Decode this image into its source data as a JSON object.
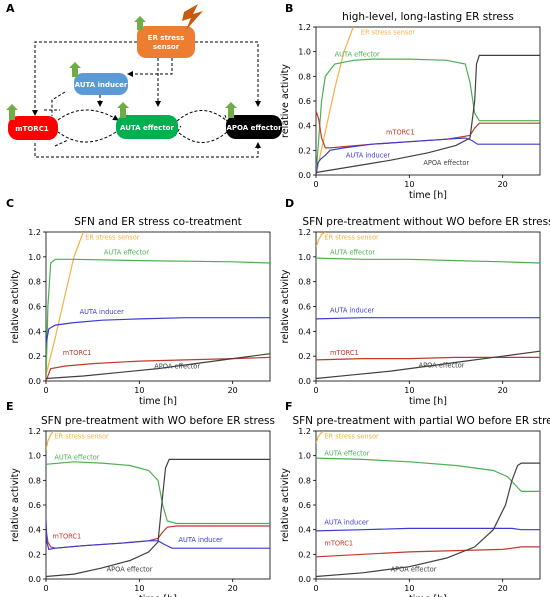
{
  "figure": {
    "panel_letters": [
      "A",
      "B",
      "C",
      "D",
      "E",
      "F"
    ]
  },
  "diagram": {
    "nodes": {
      "er_sensor": "ER stress sensor",
      "auta_inducer": "AUTA inducer",
      "mtorc1": "mTORC1",
      "auta_effector": "AUTA effector",
      "apoa_effector": "APOA effector"
    },
    "colors": {
      "er_sensor": "#ed7d31",
      "auta_inducer": "#5b9bd5",
      "mtorc1": "#ff0000",
      "auta_effector": "#00b050",
      "apoa_effector": "#000000",
      "arrow_up": "#70ad47",
      "lightning": "#c55a11"
    }
  },
  "colors": {
    "er_stress_sensor": "#f5b041",
    "auta_effector": "#4caf50",
    "mtorc1": "#c0392b",
    "auta_inducer": "#3c3cd0",
    "apoa_effector": "#404040"
  },
  "chart_data": [
    {
      "id": "B",
      "type": "line",
      "title": "high-level, long-lasting ER stress",
      "xlabel": "time [h]",
      "ylabel": "relative activity",
      "xlim": [
        0,
        24
      ],
      "ylim": [
        0,
        1.2
      ],
      "xticks": [
        "0",
        "10",
        "20"
      ],
      "yticks": [
        "0.0",
        "0.2",
        "0.4",
        "0.6",
        "0.8",
        "1.0",
        "1.2"
      ],
      "grid": false,
      "annotations": [
        "ER stress sensor",
        "AUTA effector",
        "mTORC1",
        "AUTA inducer",
        "APOA effector"
      ],
      "series": [
        {
          "name": "ER stress sensor",
          "x": [
            0,
            1,
            2,
            3,
            4
          ],
          "y": [
            0.0,
            0.35,
            0.7,
            1.0,
            1.2
          ]
        },
        {
          "name": "AUTA effector",
          "x": [
            0,
            0.3,
            0.6,
            1,
            2,
            4,
            6,
            10,
            14,
            16,
            16.5,
            17,
            17.5,
            20,
            24
          ],
          "y": [
            0.0,
            0.3,
            0.6,
            0.8,
            0.9,
            0.93,
            0.94,
            0.94,
            0.93,
            0.9,
            0.75,
            0.5,
            0.44,
            0.44,
            0.44
          ]
        },
        {
          "name": "mTORC1",
          "x": [
            0,
            0.3,
            0.6,
            1,
            1.5,
            3,
            6,
            10,
            14,
            16.5,
            17,
            17.5,
            20,
            24
          ],
          "y": [
            0.52,
            0.45,
            0.3,
            0.22,
            0.22,
            0.23,
            0.25,
            0.27,
            0.29,
            0.32,
            0.38,
            0.42,
            0.42,
            0.42
          ]
        },
        {
          "name": "AUTA inducer",
          "x": [
            0,
            0.2,
            0.5,
            1,
            1.5,
            3,
            6,
            10,
            14,
            16,
            16.7,
            17.3,
            20,
            24
          ],
          "y": [
            0.0,
            0.1,
            0.13,
            0.16,
            0.2,
            0.22,
            0.25,
            0.27,
            0.29,
            0.3,
            0.28,
            0.25,
            0.25,
            0.25
          ]
        },
        {
          "name": "APOA effector",
          "x": [
            0,
            4,
            8,
            12,
            15,
            16.5,
            17,
            17.2,
            17.5,
            20,
            24
          ],
          "y": [
            0.02,
            0.07,
            0.12,
            0.18,
            0.24,
            0.3,
            0.6,
            0.9,
            0.97,
            0.97,
            0.97
          ]
        }
      ]
    },
    {
      "id": "C",
      "type": "line",
      "title": "SFN and ER stress co-treatment",
      "xlabel": "time [h]",
      "ylabel": "relative activity",
      "xlim": [
        0,
        24
      ],
      "ylim": [
        0,
        1.2
      ],
      "xticks": [
        "0",
        "10",
        "20"
      ],
      "yticks": [
        "0.0",
        "0.2",
        "0.4",
        "0.6",
        "0.8",
        "1.0",
        "1.2"
      ],
      "grid": false,
      "annotations": [
        "ER stress sensor",
        "AUTA effector",
        "AUTA inducer",
        "mTORC1",
        "APOA effector"
      ],
      "series": [
        {
          "name": "ER stress sensor",
          "x": [
            0,
            1,
            2,
            3,
            4
          ],
          "y": [
            0.05,
            0.35,
            0.68,
            1.0,
            1.2
          ]
        },
        {
          "name": "AUTA effector",
          "x": [
            0,
            0.2,
            0.5,
            1,
            3,
            10,
            20,
            24
          ],
          "y": [
            0.0,
            0.6,
            0.95,
            0.98,
            0.98,
            0.97,
            0.96,
            0.95
          ]
        },
        {
          "name": "AUTA inducer",
          "x": [
            0,
            0.3,
            1,
            3,
            6,
            10,
            15,
            24
          ],
          "y": [
            0.3,
            0.42,
            0.45,
            0.47,
            0.49,
            0.5,
            0.51,
            0.51
          ]
        },
        {
          "name": "mTORC1",
          "x": [
            0,
            0.5,
            2,
            5,
            10,
            15,
            20,
            24
          ],
          "y": [
            0.0,
            0.1,
            0.12,
            0.14,
            0.16,
            0.17,
            0.18,
            0.19
          ]
        },
        {
          "name": "APOA effector",
          "x": [
            0,
            4,
            8,
            12,
            16,
            20,
            24
          ],
          "y": [
            0.02,
            0.04,
            0.07,
            0.1,
            0.14,
            0.18,
            0.22
          ]
        }
      ]
    },
    {
      "id": "D",
      "type": "line",
      "title": "SFN pre-treatment without WO before ER stress",
      "xlabel": "time [h]",
      "ylabel": "relative activity",
      "xlim": [
        0,
        24
      ],
      "ylim": [
        0,
        1.2
      ],
      "xticks": [
        "0",
        "10",
        "20"
      ],
      "yticks": [
        "0.0",
        "0.2",
        "0.4",
        "0.6",
        "0.8",
        "1.0",
        "1.2"
      ],
      "grid": false,
      "annotations": [
        "ER stress sensor",
        "AUTA effector",
        "AUTA inducer",
        "mTORC1",
        "APOA effector"
      ],
      "series": [
        {
          "name": "ER stress sensor",
          "x": [
            0,
            0.3,
            0.6,
            1
          ],
          "y": [
            1.08,
            1.14,
            1.18,
            1.2
          ]
        },
        {
          "name": "AUTA effector",
          "x": [
            0,
            5,
            10,
            15,
            20,
            24
          ],
          "y": [
            0.99,
            0.98,
            0.98,
            0.97,
            0.96,
            0.95
          ]
        },
        {
          "name": "AUTA inducer",
          "x": [
            0,
            5,
            10,
            24
          ],
          "y": [
            0.5,
            0.51,
            0.51,
            0.51
          ]
        },
        {
          "name": "mTORC1",
          "x": [
            0,
            5,
            10,
            15,
            20,
            24
          ],
          "y": [
            0.17,
            0.18,
            0.18,
            0.19,
            0.19,
            0.19
          ]
        },
        {
          "name": "APOA effector",
          "x": [
            0,
            4,
            8,
            12,
            16,
            20,
            24
          ],
          "y": [
            0.02,
            0.05,
            0.08,
            0.12,
            0.16,
            0.2,
            0.24
          ]
        }
      ]
    },
    {
      "id": "E",
      "type": "line",
      "title": "SFN pre-treatment with WO before ER stress",
      "xlabel": "time [h]",
      "ylabel": "relative activity",
      "xlim": [
        0,
        24
      ],
      "ylim": [
        0,
        1.2
      ],
      "xticks": [
        "0",
        "10",
        "20"
      ],
      "yticks": [
        "0.0",
        "0.2",
        "0.4",
        "0.6",
        "0.8",
        "1.0",
        "1.2"
      ],
      "grid": false,
      "annotations": [
        "ER stress sensor",
        "AUTA effector",
        "mTORC1",
        "AUTA inducer",
        "APOA effector"
      ],
      "series": [
        {
          "name": "ER stress sensor",
          "x": [
            0,
            0.2,
            0.5,
            0.8
          ],
          "y": [
            1.05,
            1.12,
            1.17,
            1.2
          ]
        },
        {
          "name": "AUTA effector",
          "x": [
            0,
            3,
            6,
            9,
            11,
            12,
            12.5,
            13,
            14,
            20,
            24
          ],
          "y": [
            0.93,
            0.95,
            0.94,
            0.92,
            0.88,
            0.8,
            0.6,
            0.47,
            0.45,
            0.45,
            0.45
          ]
        },
        {
          "name": "mTORC1",
          "x": [
            0,
            0.2,
            0.5,
            1,
            4,
            8,
            11,
            12,
            12.5,
            13,
            14,
            20,
            24
          ],
          "y": [
            0.4,
            0.3,
            0.26,
            0.25,
            0.27,
            0.29,
            0.31,
            0.33,
            0.38,
            0.42,
            0.43,
            0.43,
            0.43
          ]
        },
        {
          "name": "AUTA inducer",
          "x": [
            0,
            0.1,
            0.3,
            1,
            4,
            8,
            11,
            12,
            12.7,
            13.5,
            20,
            24
          ],
          "y": [
            0.48,
            0.3,
            0.24,
            0.25,
            0.27,
            0.29,
            0.31,
            0.31,
            0.28,
            0.25,
            0.25,
            0.25
          ]
        },
        {
          "name": "APOA effector",
          "x": [
            0,
            3,
            6,
            9,
            11,
            12,
            12.4,
            12.8,
            13.2,
            20,
            24
          ],
          "y": [
            0.02,
            0.04,
            0.09,
            0.15,
            0.22,
            0.3,
            0.6,
            0.9,
            0.97,
            0.97,
            0.97
          ]
        }
      ]
    },
    {
      "id": "F",
      "type": "line",
      "title": "SFN pre-treatment with partial WO before ER stress",
      "xlabel": "time [h]",
      "ylabel": "relative activity",
      "xlim": [
        0,
        24
      ],
      "ylim": [
        0,
        1.2
      ],
      "xticks": [
        "0",
        "10",
        "20"
      ],
      "yticks": [
        "0.0",
        "0.2",
        "0.4",
        "0.6",
        "0.8",
        "1.0",
        "1.2"
      ],
      "grid": false,
      "annotations": [
        "ER stress sensor",
        "AUTA effector",
        "AUTA inducer",
        "mTORC1",
        "APOA effector"
      ],
      "series": [
        {
          "name": "ER stress sensor",
          "x": [
            0,
            0.2,
            0.5,
            0.8
          ],
          "y": [
            1.1,
            1.15,
            1.18,
            1.2
          ]
        },
        {
          "name": "AUTA effector",
          "x": [
            0,
            5,
            10,
            15,
            19,
            20.5,
            21.5,
            22,
            24
          ],
          "y": [
            0.98,
            0.97,
            0.95,
            0.92,
            0.88,
            0.83,
            0.75,
            0.71,
            0.71
          ]
        },
        {
          "name": "AUTA inducer",
          "x": [
            0,
            5,
            10,
            15,
            20,
            21,
            22,
            24
          ],
          "y": [
            0.39,
            0.4,
            0.41,
            0.41,
            0.41,
            0.41,
            0.4,
            0.4
          ]
        },
        {
          "name": "mTORC1",
          "x": [
            0,
            5,
            10,
            15,
            20,
            21,
            22,
            24
          ],
          "y": [
            0.18,
            0.2,
            0.22,
            0.23,
            0.24,
            0.25,
            0.26,
            0.26
          ]
        },
        {
          "name": "APOA effector",
          "x": [
            0,
            5,
            10,
            14,
            17,
            19,
            20.3,
            21,
            21.6,
            22,
            24
          ],
          "y": [
            0.02,
            0.05,
            0.1,
            0.17,
            0.26,
            0.4,
            0.6,
            0.8,
            0.92,
            0.94,
            0.94
          ]
        }
      ]
    }
  ]
}
